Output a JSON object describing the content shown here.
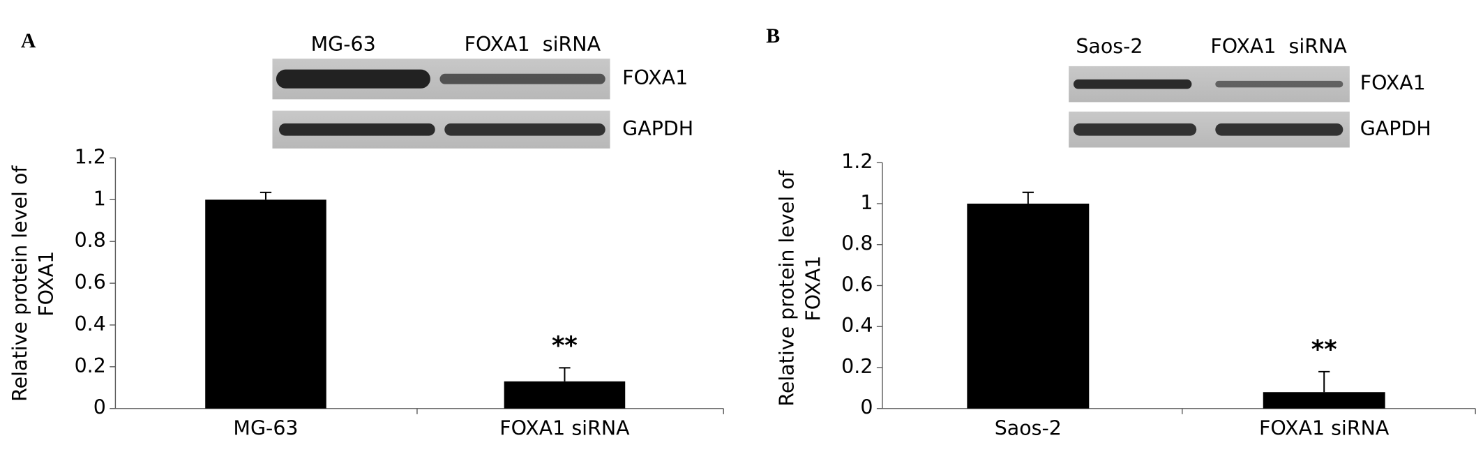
{
  "chart_data": [
    {
      "type": "bar",
      "panel": "A",
      "blot_lanes": [
        "MG-63",
        "FOXA1  siRNA"
      ],
      "blot_rows": [
        "FOXA1",
        "GAPDH"
      ],
      "ylabel": [
        "Relative protein level of",
        "FOXA1"
      ],
      "categories": [
        "MG-63",
        "FOXA1 siRNA"
      ],
      "values": [
        1.0,
        0.13
      ],
      "errors": [
        0.035,
        0.065
      ],
      "annotations": [
        null,
        "**"
      ],
      "color": "#000000",
      "ylim": [
        0,
        1.2
      ],
      "yticks": [
        0,
        0.2,
        0.4,
        0.6,
        0.8,
        1,
        1.2
      ]
    },
    {
      "type": "bar",
      "panel": "B",
      "blot_lanes": [
        "Saos-2",
        "FOXA1  siRNA"
      ],
      "blot_rows": [
        "FOXA1",
        "GAPDH"
      ],
      "ylabel": [
        "Relative protein level of",
        "FOXA1"
      ],
      "categories": [
        "Saos-2",
        "FOXA1 siRNA"
      ],
      "values": [
        1.0,
        0.08
      ],
      "errors": [
        0.055,
        0.1
      ],
      "annotations": [
        null,
        "**"
      ],
      "color": "#000000",
      "ylim": [
        0,
        1.2
      ],
      "yticks": [
        0,
        0.2,
        0.4,
        0.6,
        0.8,
        1,
        1.2
      ]
    }
  ]
}
